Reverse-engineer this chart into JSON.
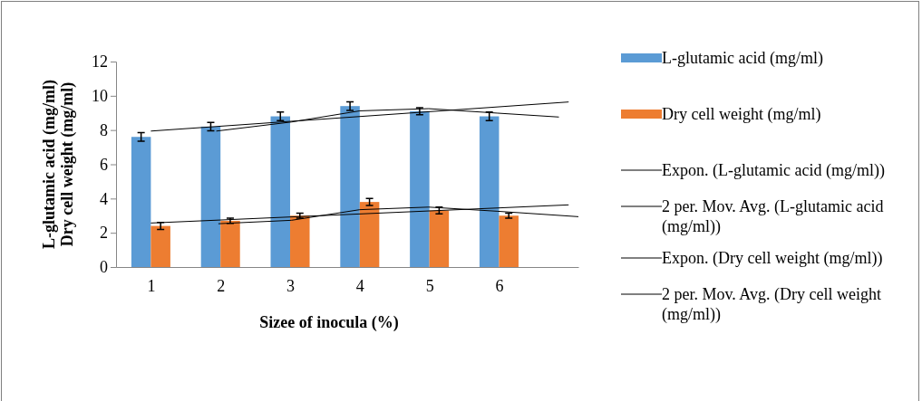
{
  "chart_data": {
    "type": "bar",
    "xlabel": "Sizee of inocula (%)",
    "ylabel": "L-glutamic acid (mg/ml)\nDry cell weight (mg/ml)",
    "x": [
      1,
      2,
      3,
      4,
      5,
      6
    ],
    "xlim": [
      0.5,
      7.14
    ],
    "xticks": [
      1,
      2,
      3,
      4,
      5,
      6
    ],
    "ylim": [
      0,
      12
    ],
    "yticks": [
      0,
      2,
      4,
      6,
      8,
      10,
      12
    ],
    "grid": false,
    "legend": "right",
    "series": [
      {
        "name": "L-glutamic acid (mg/ml)",
        "color": "#5b9bd5",
        "values": [
          7.6,
          8.2,
          8.8,
          9.4,
          9.1,
          8.8
        ],
        "errors": [
          0.25,
          0.25,
          0.25,
          0.25,
          0.2,
          0.25
        ]
      },
      {
        "name": "Dry cell weight (mg/ml)",
        "color": "#ed7d31",
        "values": [
          2.4,
          2.7,
          3.0,
          3.8,
          3.3,
          3.0
        ],
        "errors": [
          0.2,
          0.15,
          0.15,
          0.2,
          0.2,
          0.15
        ]
      },
      {
        "name": "Expon. (L-glutamic acid (mg/ml))",
        "type": "line",
        "color": "#000000",
        "x": [
          1,
          7
        ],
        "values": [
          7.94,
          9.64
        ]
      },
      {
        "name": "2 per. Mov. Avg. (L-glutamic acid (mg/ml))",
        "type": "line",
        "color": "#000000",
        "x": [
          1.94,
          3.02,
          4.0,
          4.99,
          5.97,
          6.86
        ],
        "values": [
          7.94,
          8.47,
          9.12,
          9.25,
          8.99,
          8.76
        ]
      },
      {
        "name": "Expon. (Dry cell weight (mg/ml))",
        "type": "line",
        "color": "#000000",
        "x": [
          1,
          7
        ],
        "values": [
          2.57,
          3.63
        ]
      },
      {
        "name": "2 per. Mov. Avg. (Dry cell weight (mg/ml))",
        "type": "line",
        "color": "#000000",
        "x": [
          1.97,
          3.02,
          4.0,
          4.99,
          5.97,
          7.14
        ],
        "values": [
          2.53,
          2.73,
          3.35,
          3.5,
          3.26,
          2.94
        ]
      }
    ]
  }
}
